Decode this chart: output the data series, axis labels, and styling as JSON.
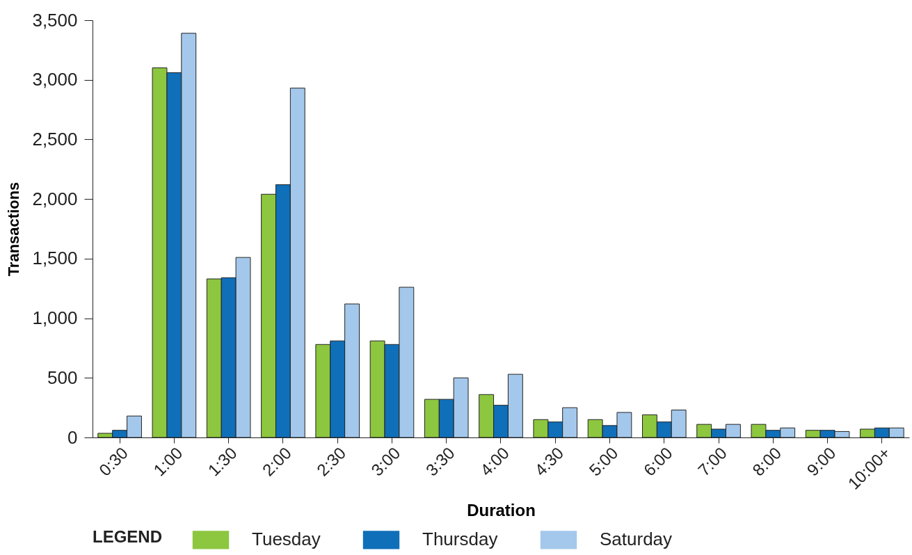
{
  "chart_data": {
    "type": "bar",
    "xlabel": "Duration",
    "ylabel": "Transactions",
    "legend_title": "LEGEND",
    "legend": "bottom",
    "categories": [
      "0:30",
      "1:00",
      "1:30",
      "2:00",
      "2:30",
      "3:00",
      "3:30",
      "4:00",
      "4:30",
      "5:00",
      "6:00",
      "7:00",
      "8:00",
      "9:00",
      "10:00+"
    ],
    "series": [
      {
        "name": "Tuesday",
        "color": "#8dc63f",
        "values": [
          35,
          3100,
          1330,
          2040,
          780,
          810,
          320,
          360,
          150,
          150,
          190,
          110,
          110,
          60,
          70
        ]
      },
      {
        "name": "Thursday",
        "color": "#0f6fb9",
        "values": [
          60,
          3060,
          1340,
          2120,
          810,
          780,
          320,
          270,
          130,
          100,
          130,
          70,
          60,
          60,
          80
        ]
      },
      {
        "name": "Saturday",
        "color": "#a4c8eb",
        "values": [
          180,
          3390,
          1510,
          2930,
          1120,
          1260,
          500,
          530,
          250,
          210,
          230,
          110,
          80,
          50,
          80
        ]
      }
    ],
    "ylim": [
      0,
      3500
    ],
    "yticks": [
      0,
      500,
      {
        "value": 1000,
        "label": "1,000"
      },
      {
        "value": 1500,
        "label": "1,500"
      },
      {
        "value": 2000,
        "label": "2,000"
      },
      {
        "value": 2500,
        "label": "2,500"
      },
      {
        "value": 3000,
        "label": "3,000"
      },
      {
        "value": 3500,
        "label": "3,500"
      }
    ]
  }
}
